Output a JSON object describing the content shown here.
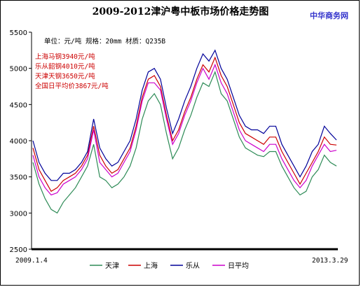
{
  "title": "2009-2012津沪粤中板市场价格走势图",
  "brand": "中华商务网",
  "spec_note": "单位：元/吨 规格：20mm 材质：Q235B",
  "annotations": [
    {
      "text": "上海马钢3940元/吨",
      "color": "#cc0000"
    },
    {
      "text": "乐从韶钢4010元/吨",
      "color": "#cc0000"
    },
    {
      "text": "天津天钢3650元/吨",
      "color": "#cc0000"
    },
    {
      "text": "全国日平均价3867元/吨",
      "color": "#cc0000"
    }
  ],
  "chart_data": {
    "type": "line",
    "title": "2009-2012津沪粤中板市场价格走势图",
    "x_start_label": "2009.1.4",
    "x_end_label": "2013.3.29",
    "ylim": [
      2500,
      5500
    ],
    "yticks": [
      2500,
      3000,
      3500,
      4000,
      4500,
      5000,
      5500
    ],
    "grid": false,
    "legend_position": "bottom",
    "series": [
      {
        "name": "天津",
        "color": "#2e8b57",
        "values": [
          3700,
          3400,
          3200,
          3050,
          3000,
          3150,
          3250,
          3350,
          3500,
          3650,
          3950,
          3500,
          3450,
          3350,
          3400,
          3500,
          3650,
          3900,
          4300,
          4550,
          4650,
          4500,
          4100,
          3750,
          3900,
          4150,
          4350,
          4600,
          4800,
          4750,
          4950,
          4650,
          4550,
          4300,
          4050,
          3900,
          3850,
          3800,
          3780,
          3850,
          3850,
          3650,
          3500,
          3350,
          3250,
          3300,
          3500,
          3600,
          3800,
          3700,
          3650
        ]
      },
      {
        "name": "上海",
        "color": "#cc0000",
        "values": [
          3900,
          3600,
          3450,
          3300,
          3350,
          3450,
          3500,
          3550,
          3650,
          3800,
          4200,
          3800,
          3650,
          3550,
          3600,
          3750,
          3900,
          4200,
          4600,
          4850,
          4900,
          4750,
          4350,
          4000,
          4150,
          4400,
          4600,
          4850,
          5050,
          4950,
          5150,
          4900,
          4750,
          4500,
          4250,
          4100,
          4050,
          4000,
          3950,
          4050,
          4050,
          3850,
          3700,
          3550,
          3400,
          3550,
          3700,
          3850,
          4050,
          3950,
          3940
        ]
      },
      {
        "name": "乐从",
        "color": "#000099",
        "values": [
          4000,
          3700,
          3550,
          3450,
          3450,
          3550,
          3550,
          3600,
          3700,
          3850,
          4300,
          3900,
          3750,
          3650,
          3700,
          3850,
          4000,
          4300,
          4700,
          4950,
          5000,
          4850,
          4450,
          4100,
          4300,
          4550,
          4750,
          5000,
          5200,
          5100,
          5250,
          5000,
          4850,
          4600,
          4350,
          4200,
          4150,
          4150,
          4100,
          4200,
          4200,
          3950,
          3800,
          3650,
          3500,
          3650,
          3850,
          3950,
          4200,
          4100,
          4010
        ]
      },
      {
        "name": "日平均",
        "color": "#cc00cc",
        "values": [
          3800,
          3500,
          3350,
          3250,
          3280,
          3400,
          3450,
          3500,
          3600,
          3750,
          4150,
          3700,
          3600,
          3500,
          3550,
          3700,
          3850,
          4150,
          4550,
          4800,
          4800,
          4700,
          4300,
          3950,
          4100,
          4350,
          4550,
          4800,
          5000,
          4850,
          5050,
          4800,
          4650,
          4400,
          4150,
          4000,
          3950,
          3900,
          3850,
          3950,
          3950,
          3750,
          3600,
          3450,
          3350,
          3450,
          3650,
          3800,
          3950,
          3850,
          3867
        ]
      }
    ]
  }
}
